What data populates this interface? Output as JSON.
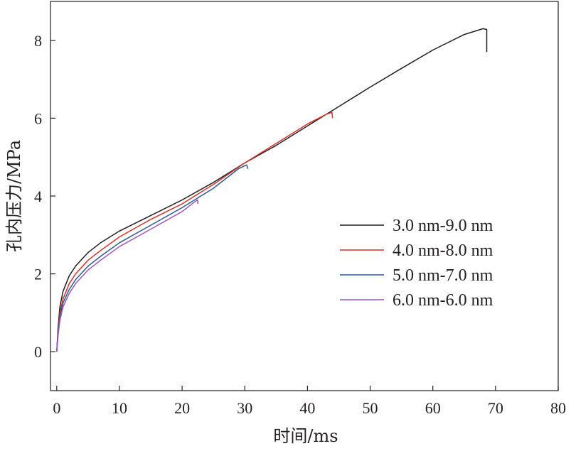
{
  "chart_data": {
    "type": "line",
    "title": "",
    "xlabel": "时间/ms",
    "ylabel": "孔内压力/MPa",
    "xlim": [
      -1,
      80
    ],
    "ylim": [
      -1,
      9
    ],
    "xticks": [
      0,
      10,
      20,
      30,
      40,
      50,
      60,
      70,
      80
    ],
    "yticks": [
      0,
      2,
      4,
      6,
      8
    ],
    "grid": false,
    "legend_position": "center-right",
    "series": [
      {
        "name": "3.0 nm-9.0 nm",
        "color": "#231f20",
        "points": [
          [
            0,
            0
          ],
          [
            0.2,
            0.6
          ],
          [
            0.5,
            1.15
          ],
          [
            1,
            1.55
          ],
          [
            2,
            1.95
          ],
          [
            3,
            2.2
          ],
          [
            5,
            2.55
          ],
          [
            7,
            2.8
          ],
          [
            10,
            3.1
          ],
          [
            15,
            3.5
          ],
          [
            20,
            3.9
          ],
          [
            25,
            4.35
          ],
          [
            30,
            4.85
          ],
          [
            35,
            5.3
          ],
          [
            40,
            5.8
          ],
          [
            45,
            6.3
          ],
          [
            50,
            6.8
          ],
          [
            55,
            7.28
          ],
          [
            60,
            7.75
          ],
          [
            65,
            8.15
          ],
          [
            68,
            8.3
          ],
          [
            68.6,
            8.28
          ],
          [
            68.6,
            7.7
          ]
        ]
      },
      {
        "name": "4.0 nm-8.0 nm",
        "color": "#d0312d",
        "points": [
          [
            0,
            0
          ],
          [
            0.2,
            0.5
          ],
          [
            0.5,
            1.0
          ],
          [
            1,
            1.35
          ],
          [
            2,
            1.75
          ],
          [
            3,
            2.0
          ],
          [
            5,
            2.35
          ],
          [
            7,
            2.6
          ],
          [
            10,
            2.95
          ],
          [
            15,
            3.4
          ],
          [
            20,
            3.8
          ],
          [
            25,
            4.3
          ],
          [
            30,
            4.85
          ],
          [
            35,
            5.35
          ],
          [
            40,
            5.85
          ],
          [
            43,
            6.1
          ],
          [
            43.9,
            6.15
          ],
          [
            44,
            6.0
          ]
        ]
      },
      {
        "name": "5.0 nm-7.0 nm",
        "color": "#2e5a8e",
        "points": [
          [
            0,
            0
          ],
          [
            0.2,
            0.45
          ],
          [
            0.5,
            0.9
          ],
          [
            1,
            1.25
          ],
          [
            2,
            1.6
          ],
          [
            3,
            1.85
          ],
          [
            5,
            2.2
          ],
          [
            7,
            2.45
          ],
          [
            10,
            2.8
          ],
          [
            15,
            3.25
          ],
          [
            20,
            3.7
          ],
          [
            25,
            4.2
          ],
          [
            29,
            4.7
          ],
          [
            30.3,
            4.8
          ],
          [
            30.5,
            4.7
          ]
        ]
      },
      {
        "name": "6.0 nm-6.0 nm",
        "color": "#9b59b6",
        "points": [
          [
            0,
            0
          ],
          [
            0.2,
            0.4
          ],
          [
            0.5,
            0.8
          ],
          [
            1,
            1.15
          ],
          [
            2,
            1.5
          ],
          [
            3,
            1.75
          ],
          [
            5,
            2.1
          ],
          [
            7,
            2.35
          ],
          [
            10,
            2.7
          ],
          [
            15,
            3.15
          ],
          [
            20,
            3.6
          ],
          [
            22,
            3.85
          ],
          [
            22.5,
            3.9
          ],
          [
            22.5,
            3.8
          ]
        ]
      }
    ]
  }
}
